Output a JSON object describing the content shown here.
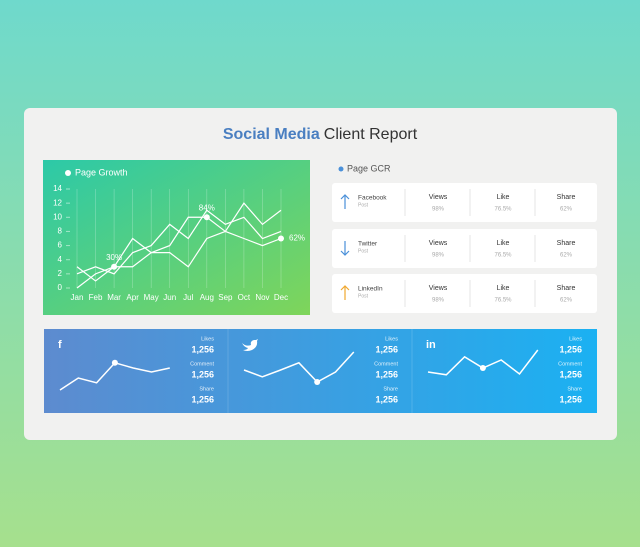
{
  "header": {
    "title_bold": "Social Media",
    "title_rest": "Client Report"
  },
  "chart_data": {
    "type": "line",
    "title": "Page Growth",
    "categories": [
      "Jan",
      "Feb",
      "Mar",
      "Apr",
      "May",
      "Jun",
      "Jul",
      "Aug",
      "Sep",
      "Oct",
      "Nov",
      "Dec"
    ],
    "series": [
      {
        "color": "#ffffff",
        "values": [
          3,
          1,
          3,
          7,
          5,
          6,
          10,
          10,
          8,
          12,
          9,
          11
        ]
      },
      {
        "color": "#ffffff",
        "values": [
          2,
          3,
          2,
          5,
          6,
          9,
          7,
          11,
          9,
          10,
          7,
          8
        ]
      },
      {
        "color": "#ffffff",
        "values": [
          0,
          2,
          3,
          3,
          5,
          5,
          3,
          7,
          8,
          7,
          6,
          7
        ]
      }
    ],
    "ylim": [
      0,
      14
    ],
    "yticks": [
      0,
      2,
      4,
      6,
      8,
      10,
      12,
      14
    ],
    "annotations": [
      {
        "text": "30%",
        "x": "Mar",
        "y": 3
      },
      {
        "text": "84%",
        "x": "Aug",
        "y": 10
      },
      {
        "text": "62%",
        "x": "Dec",
        "y": 7
      }
    ]
  },
  "gcr": {
    "title": "Page GCR",
    "columns": [
      "Views",
      "Like",
      "Share"
    ],
    "rows": [
      {
        "name": "Facebook",
        "sub": "Post",
        "values": [
          "98%",
          "76.5%",
          "62%"
        ]
      },
      {
        "name": "Twitter",
        "sub": "Post",
        "values": [
          "98%",
          "76.5%",
          "62%"
        ]
      },
      {
        "name": "LinkedIn",
        "sub": "Post",
        "values": [
          "98%",
          "76.5%",
          "62%"
        ]
      }
    ]
  },
  "social": [
    {
      "icon": "f",
      "stats": [
        {
          "label": "Likes",
          "value": "1,256"
        },
        {
          "label": "Comment",
          "value": "1,256"
        },
        {
          "label": "Share",
          "value": "1,256"
        }
      ],
      "trend": [
        0.5,
        3.5,
        2.3,
        7.3,
        6,
        5,
        6
      ]
    },
    {
      "stats": [
        {
          "label": "Likes",
          "value": "1,256"
        },
        {
          "label": "Comment",
          "value": "1,256"
        },
        {
          "label": "Share",
          "value": "1,256"
        }
      ],
      "trend": [
        5.5,
        3.8,
        5.5,
        7.3,
        2.5,
        5,
        10
      ]
    },
    {
      "icon": "in",
      "stats": [
        {
          "label": "Likes",
          "value": "1,256"
        },
        {
          "label": "Comment",
          "value": "1,256"
        },
        {
          "label": "Share",
          "value": "1,256"
        }
      ],
      "trend": [
        5,
        4.3,
        8.8,
        6,
        8,
        4.5,
        10.5
      ]
    }
  ]
}
